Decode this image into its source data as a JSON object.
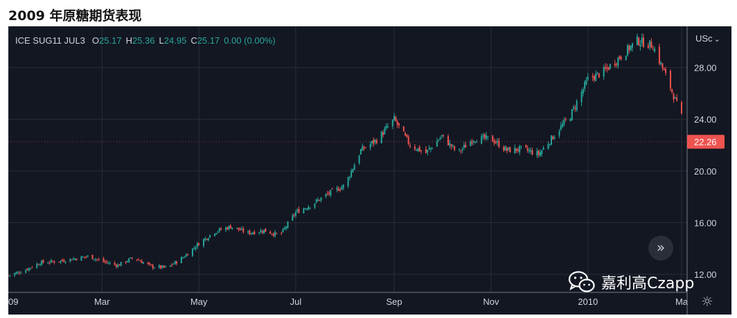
{
  "page": {
    "title": "2009 年原糖期货表现"
  },
  "legend": {
    "symbol": "ICE SUG11 JUL3",
    "o_label": "O",
    "o_value": "25.17",
    "h_label": "H",
    "h_value": "25.36",
    "l_label": "L",
    "l_value": "24.95",
    "c_label": "C",
    "c_value": "25.17",
    "change": "0.00 (0.00%)"
  },
  "currency_label": "USc",
  "chevron_glyph": "⌄",
  "scroll_glyph": "»",
  "settings_glyph": "☼",
  "last_price_label": "22.26",
  "watermark_text": "嘉利高Czapp",
  "colors": {
    "background": "#131722",
    "up": "#26a69a",
    "down": "#ef5350",
    "grid": "#2a2e39",
    "axis_text": "#d1d4dc"
  },
  "chart_data": {
    "type": "candlestick",
    "title": "",
    "xlabel": "",
    "ylabel": "",
    "ylim": [
      10.6,
      31.2
    ],
    "y_ticks": [
      "12.00",
      "16.00",
      "20.00",
      "24.00",
      "28.00"
    ],
    "y_tick_values": [
      12,
      16,
      20,
      24,
      28
    ],
    "x_ticks": [
      "09",
      "Mar",
      "May",
      "Jul",
      "Sep",
      "Nov",
      "2010",
      "Ma"
    ],
    "x_tick_dates": [
      "2009-01-01",
      "2009-03-01",
      "2009-05-01",
      "2009-07-01",
      "2009-09-01",
      "2009-11-01",
      "2010-01-01",
      "2010-03-01"
    ],
    "grid": true,
    "last_price": 22.26,
    "series": [
      {
        "x": [
          "2009-01-01",
          "2009-01-11",
          "2009-01-21",
          "2009-02-01",
          "2009-02-11",
          "2009-02-21",
          "2009-03-01",
          "2009-03-11",
          "2009-03-21",
          "2009-04-01",
          "2009-04-11",
          "2009-04-21",
          "2009-05-01",
          "2009-05-11",
          "2009-05-21",
          "2009-06-01",
          "2009-06-11",
          "2009-06-21",
          "2009-07-01",
          "2009-07-11",
          "2009-07-21",
          "2009-08-01",
          "2009-08-11",
          "2009-08-21",
          "2009-09-01",
          "2009-09-11",
          "2009-09-21",
          "2009-10-01",
          "2009-10-11",
          "2009-10-21",
          "2009-11-01",
          "2009-11-11",
          "2009-11-21",
          "2009-12-01",
          "2009-12-11",
          "2009-12-21",
          "2010-01-01",
          "2010-01-11",
          "2010-01-21",
          "2010-02-01",
          "2010-02-11",
          "2010-02-21",
          "2010-03-01"
        ],
        "values": [
          11.9,
          12.3,
          12.9,
          13.0,
          13.2,
          13.4,
          13.0,
          12.7,
          13.3,
          12.6,
          12.5,
          13.3,
          14.4,
          15.3,
          15.7,
          15.2,
          15.4,
          15.0,
          16.8,
          17.4,
          18.2,
          18.9,
          21.6,
          22.4,
          24.0,
          22.0,
          21.4,
          22.7,
          21.4,
          22.5,
          22.5,
          21.6,
          21.7,
          21.3,
          22.8,
          24.3,
          27.1,
          27.7,
          28.8,
          30.1,
          29.7,
          26.8,
          24.2
        ]
      }
    ]
  }
}
